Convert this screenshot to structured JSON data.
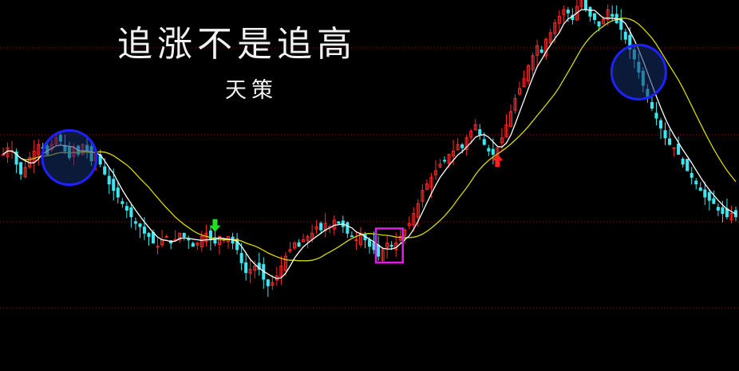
{
  "title": "追涨不是追高",
  "subtitle": "天策",
  "colors": {
    "background": "#000000",
    "up": "#ff2a2a",
    "down": "#3ee6ef",
    "ma_fast": "#ffffff",
    "ma_slow": "#d7d700",
    "grid": "#a01010",
    "circle_stroke": "#1e22ff",
    "circle_fill": "#16306a",
    "box": "#e020e0",
    "arrow_down": "#20e020",
    "arrow_up": "#ff2020"
  },
  "chart_data": {
    "type": "candlestick",
    "title": "追涨不是追高",
    "subtitle": "天策",
    "grid": "horizontal-dotted",
    "ylim": [
      0,
      100
    ],
    "closes": [
      55,
      57,
      56,
      52,
      49,
      51,
      54,
      56,
      58,
      57,
      55,
      58,
      60,
      59,
      56,
      54,
      57,
      55,
      58,
      56,
      53,
      55,
      52,
      49,
      46,
      44,
      42,
      40,
      38,
      36,
      34,
      33,
      31,
      30,
      28,
      27,
      29,
      30,
      28,
      29,
      31,
      30,
      29,
      27,
      28,
      30,
      31,
      29,
      28,
      30,
      29,
      30,
      28,
      26,
      22,
      19,
      20,
      21,
      20,
      17,
      15,
      16,
      18,
      21,
      24,
      26,
      28,
      27,
      29,
      30,
      31,
      33,
      32,
      34,
      33,
      35,
      34,
      33,
      31,
      30,
      29,
      31,
      29,
      27,
      26,
      24,
      26,
      28,
      27,
      28,
      30,
      32,
      34,
      37,
      40,
      44,
      46,
      48,
      50,
      52,
      53,
      55,
      56,
      58,
      57,
      60,
      62,
      64,
      61,
      58,
      56,
      55,
      57,
      60,
      64,
      68,
      72,
      75,
      78,
      82,
      85,
      88,
      86,
      90,
      92,
      95,
      97,
      99,
      98,
      96,
      100,
      102,
      99,
      97,
      96,
      94,
      96,
      99,
      97,
      95,
      93,
      90,
      87,
      84,
      80,
      76,
      72,
      69,
      66,
      63,
      60,
      58,
      57,
      55,
      52,
      50,
      48,
      46,
      44,
      42,
      41,
      40,
      38,
      37,
      36,
      37,
      36
    ],
    "annotations": [
      {
        "type": "circle",
        "at_index": 15
      },
      {
        "type": "circle",
        "at_index": 144
      },
      {
        "type": "arrow-down",
        "at_index": 48
      },
      {
        "type": "box",
        "from_index": 85,
        "to_index": 90
      },
      {
        "type": "arrow-up",
        "at_index": 112
      }
    ]
  }
}
